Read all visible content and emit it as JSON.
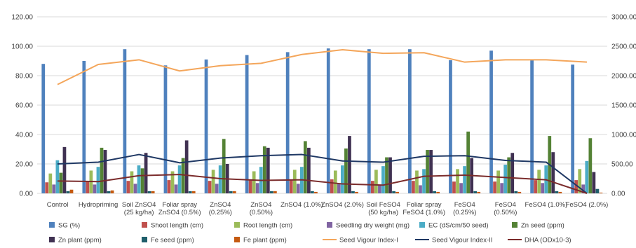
{
  "chart_data": {
    "type": "bar",
    "categories": [
      [
        "Control"
      ],
      [
        "Hydropriming"
      ],
      [
        "Soil ZnSO4",
        "(25 kg/ha)"
      ],
      [
        "Foliar spray",
        "ZnSO4 (0.5%)"
      ],
      [
        "ZnSO4",
        "(0.25%)"
      ],
      [
        "ZnSO4",
        "(0.50%)"
      ],
      [
        "ZnSO4 (1.0%)"
      ],
      [
        "ZnSO4 (2.0%)"
      ],
      [
        "Soil FeSO4",
        "(50 kg/ha)"
      ],
      [
        "Foliar spray",
        "FeSO4 (1.0%)"
      ],
      [
        "FeSO4",
        "(0.25%)"
      ],
      [
        "FeSO4",
        "(0.50%)"
      ],
      [
        "FeSO4 (1.0%)"
      ],
      [
        "FeSO4 (2.0%)"
      ]
    ],
    "y_left": {
      "ylim": [
        0,
        120
      ],
      "ticks": [
        "0.00",
        "20.00",
        "40.00",
        "60.00",
        "80.00",
        "100.00",
        "120.00"
      ]
    },
    "y_right": {
      "ylim": [
        0,
        3000
      ],
      "ticks": [
        "0.00",
        "500.00",
        "1000.00",
        "1500.00",
        "2000.00",
        "2500.00",
        "3000.00"
      ]
    },
    "grid": true,
    "legend_position": "bottom",
    "bar_series": [
      {
        "name": "SG (%)",
        "color": "#4f81bd",
        "values": [
          88,
          90,
          98,
          87,
          91,
          94,
          96,
          98.5,
          98,
          98,
          90.5,
          97,
          91,
          87.5
        ]
      },
      {
        "name": "Shoot length (cm)",
        "color": "#c0504d",
        "values": [
          7.5,
          8,
          8.5,
          9,
          8.5,
          9,
          9,
          9.5,
          8.5,
          8.5,
          8,
          8,
          9,
          9
        ]
      },
      {
        "name": "Root length (cm)",
        "color": "#9bbb59",
        "values": [
          13.5,
          15.5,
          15,
          15,
          16,
          15,
          16,
          15.5,
          16,
          15.5,
          16.5,
          15.5,
          16,
          16.5
        ]
      },
      {
        "name": "Seedling dry weight (mg)",
        "color": "#8064a2",
        "values": [
          6,
          6,
          6.5,
          6,
          6.5,
          7,
          6.5,
          7,
          5.5,
          5.5,
          7,
          7,
          7,
          6
        ]
      },
      {
        "name": "EC (dS/cm/50 seed)",
        "color": "#4bacc6",
        "values": [
          22.5,
          18,
          19,
          19,
          19,
          18,
          18,
          19,
          18.5,
          16.5,
          18.5,
          19.5,
          19,
          22
        ]
      },
      {
        "name": "Zn seed (ppm)",
        "color": "#548235",
        "values": [
          14,
          31,
          17,
          24,
          37,
          32,
          35.5,
          30.5,
          24.5,
          29.5,
          42,
          24.5,
          39,
          37.5
        ]
      },
      {
        "name": "Zn plant (ppm)",
        "color": "#403152",
        "values": [
          31.5,
          29.5,
          27.5,
          36,
          20,
          31,
          31,
          39,
          24.5,
          29.5,
          24,
          27.5,
          28,
          14.5
        ]
      },
      {
        "name": "Fe seed (ppm)",
        "color": "#1f5f6b",
        "values": [
          1.5,
          1.5,
          1.5,
          1.5,
          1.5,
          1.5,
          1.5,
          1.5,
          1.5,
          1.5,
          1.5,
          1.5,
          1.5,
          3
        ]
      },
      {
        "name": "Fe plant (ppm)",
        "color": "#c55a11",
        "values": [
          2.5,
          2,
          1.5,
          1.5,
          1.5,
          1.5,
          1,
          1,
          1,
          1,
          1,
          1,
          1,
          0.5
        ]
      }
    ],
    "line_series": [
      {
        "name": "Seed Vigour Index-I",
        "color": "#f4a65b",
        "axis": "right",
        "values": [
          1850,
          2190,
          2270,
          2080,
          2170,
          2210,
          2360,
          2440,
          2380,
          2390,
          2230,
          2270,
          2270,
          2230
        ]
      },
      {
        "name": "Seed Vigour Index-II",
        "color": "#1f3864",
        "axis": "right",
        "values": [
          500,
          530,
          660,
          520,
          600,
          640,
          660,
          550,
          530,
          630,
          640,
          560,
          530,
          0
        ]
      },
      {
        "name": "DHA (ODx10-3)",
        "color": "#7b2c2c",
        "axis": "right",
        "values": [
          210,
          200,
          300,
          320,
          250,
          220,
          230,
          160,
          140,
          290,
          310,
          270,
          230,
          0
        ]
      }
    ]
  }
}
